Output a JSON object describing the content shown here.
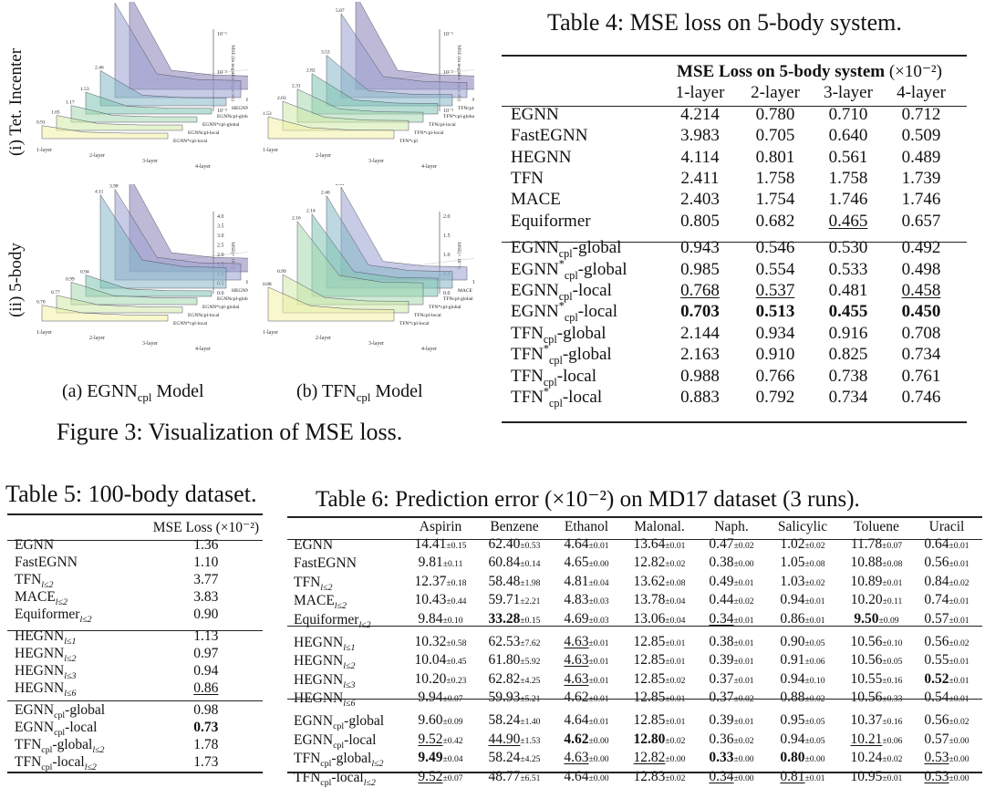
{
  "figure3": {
    "caption": "Figure 3: Visualization of MSE loss.",
    "row_labels": [
      "(i) Tet. Incenter",
      "(ii) 5-body"
    ],
    "sub_a": {
      "prefix": "(a) EGNN",
      "sub": "cpl",
      "suffix": " Model"
    },
    "sub_b": {
      "prefix": "(b) TFN",
      "sub": "cpl",
      "suffix": " Model"
    },
    "x_ticks": [
      "1-layer",
      "2-layer",
      "3-layer",
      "4-layer"
    ],
    "z_label_log": "MSE (in negative log scale)",
    "z_label_lin": "MSE(× 10⁻²)",
    "z_ticks_log": [
      "10⁻¹",
      "10⁻²",
      "10⁻³"
    ],
    "z_ticks_lin": [
      "4.0",
      "3.5",
      "3.0",
      "2.5",
      "2.0",
      "1.5",
      "1.0",
      "0.5",
      "0.0"
    ],
    "z_ticks_lin_tfn": [
      "2.0",
      "1.5",
      "1.0",
      "0.5",
      "0.0"
    ],
    "egnn_series": [
      "EGNN",
      "FastEGNN",
      "HEGNN",
      "EGNN_cpl-global",
      "EGNN*_cpl-global",
      "EGNN_cpl-local",
      "EGNN*_cpl-local"
    ],
    "tfn_series": [
      "TFN",
      "MACE",
      "TFN_cpl-global",
      "TFN*_cpl-global",
      "TFN_cpl-local",
      "TFN*_cpl-local"
    ],
    "series_colors": [
      "#8a7fb8",
      "#9aa0cf",
      "#86b8c9",
      "#7fc4b2",
      "#a5d8b0",
      "#d2eaa8",
      "#f2f0a6"
    ],
    "panel_tl_values": [
      "6.65",
      "6.61",
      "2.46",
      "1.53",
      "1.17",
      "1.05",
      "0.91"
    ],
    "panel_tr_values": [
      "6.64",
      "5.87",
      "3.53",
      "2.82",
      "2.31",
      "2.03",
      "1.53"
    ],
    "panel_bl_values": [
      "4.21",
      "3.98",
      "4.11",
      "0.94",
      "0.99",
      "0.77",
      "0.70"
    ],
    "panel_br_values": [
      "2.41",
      "2.40",
      "2.14",
      "2.16",
      "0.99",
      "0.88"
    ]
  },
  "table4": {
    "caption": "Table 4: MSE loss on 5-body system.",
    "group_header": "MSE Loss on 5-body system",
    "group_unit": "(×10⁻²)",
    "columns": [
      "1-layer",
      "2-layer",
      "3-layer",
      "4-layer"
    ],
    "rows": [
      {
        "name": "EGNN",
        "v": [
          "4.214",
          "0.780",
          "0.710",
          "0.712"
        ]
      },
      {
        "name": "FastEGNN",
        "v": [
          "3.983",
          "0.705",
          "0.640",
          "0.509"
        ]
      },
      {
        "name": "HEGNN",
        "v": [
          "4.114",
          "0.801",
          "0.561",
          "0.489"
        ]
      },
      {
        "name": "TFN",
        "v": [
          "2.411",
          "1.758",
          "1.758",
          "1.739"
        ]
      },
      {
        "name": "MACE",
        "v": [
          "2.403",
          "1.754",
          "1.746",
          "1.746"
        ]
      },
      {
        "name": "Equiformer",
        "v": [
          "0.805",
          "0.682",
          "0.465",
          "0.657"
        ]
      },
      {
        "name": "EGNN_cpl-global",
        "v": [
          "0.943",
          "0.546",
          "0.530",
          "0.492"
        ]
      },
      {
        "name": "EGNN*_cpl-global",
        "v": [
          "0.985",
          "0.554",
          "0.533",
          "0.498"
        ]
      },
      {
        "name": "EGNN_cpl-local",
        "v": [
          "0.768",
          "0.537",
          "0.481",
          "0.458"
        ]
      },
      {
        "name": "EGNN*_cpl-local",
        "v": [
          "0.703",
          "0.513",
          "0.455",
          "0.450"
        ]
      },
      {
        "name": "TFN_cpl-global",
        "v": [
          "2.144",
          "0.934",
          "0.916",
          "0.708"
        ]
      },
      {
        "name": "TFN*_cpl-global",
        "v": [
          "2.163",
          "0.910",
          "0.825",
          "0.734"
        ]
      },
      {
        "name": "TFN_cpl-local",
        "v": [
          "0.988",
          "0.766",
          "0.738",
          "0.761"
        ]
      },
      {
        "name": "TFN*_cpl-local",
        "v": [
          "0.883",
          "0.792",
          "0.734",
          "0.746"
        ]
      }
    ]
  },
  "table5": {
    "caption": "Table 5: 100-body dataset.",
    "header": "MSE Loss (×10⁻²)",
    "rows": [
      {
        "name": "EGNN",
        "v": "1.36"
      },
      {
        "name": "FastEGNN",
        "v": "1.10"
      },
      {
        "name": "TFN_l≤2",
        "v": "3.77"
      },
      {
        "name": "MACE_l≤2",
        "v": "3.83"
      },
      {
        "name": "Equiformer_l≤2",
        "v": "0.90"
      },
      {
        "name": "HEGNN_l≤1",
        "v": "1.13"
      },
      {
        "name": "HEGNN_l≤2",
        "v": "0.97"
      },
      {
        "name": "HEGNN_l≤3",
        "v": "0.94"
      },
      {
        "name": "HEGNN_l≤6",
        "v": "0.86"
      },
      {
        "name": "EGNN_cpl-global",
        "v": "0.98"
      },
      {
        "name": "EGNN_cpl-local",
        "v": "0.73"
      },
      {
        "name": "TFN_cpl-global_l≤2",
        "v": "1.78"
      },
      {
        "name": "TFN_cpl-local_l≤2",
        "v": "1.73"
      }
    ]
  },
  "table6": {
    "caption": "Table 6: Prediction error (×10⁻²) on MD17 dataset (3 runs).",
    "columns": [
      "Aspirin",
      "Benzene",
      "Ethanol",
      "Malonal.",
      "Naph.",
      "Salicylic",
      "Toluene",
      "Uracil"
    ],
    "rows": [
      {
        "name": "EGNN",
        "v": [
          "14.41±0.15",
          "62.40±0.53",
          "4.64±0.01",
          "13.64±0.01",
          "0.47±0.02",
          "1.02±0.02",
          "11.78±0.07",
          "0.64±0.01"
        ]
      },
      {
        "name": "FastEGNN",
        "v": [
          "9.81±0.11",
          "60.84±0.14",
          "4.65±0.00",
          "12.82±0.02",
          "0.38±0.00",
          "1.05±0.08",
          "10.88±0.08",
          "0.56±0.01"
        ]
      },
      {
        "name": "TFN_l≤2",
        "v": [
          "12.37±0.18",
          "58.48±1.98",
          "4.81±0.04",
          "13.62±0.08",
          "0.49±0.01",
          "1.03±0.02",
          "10.89±0.01",
          "0.84±0.02"
        ]
      },
      {
        "name": "MACE_l≤2",
        "v": [
          "10.43±0.44",
          "59.71±2.21",
          "4.83±0.03",
          "13.78±0.04",
          "0.44±0.02",
          "0.94±0.01",
          "10.20±0.11",
          "0.74±0.01"
        ]
      },
      {
        "name": "Equiformer_l≤2",
        "v": [
          "9.84±0.10",
          "33.28±0.15",
          "4.69±0.03",
          "13.06±0.04",
          "0.34±0.01",
          "0.86±0.01",
          "9.50±0.09",
          "0.57±0.01"
        ]
      },
      {
        "name": "HEGNN_l≤1",
        "v": [
          "10.32±0.58",
          "62.53±7.62",
          "4.63±0.01",
          "12.85±0.01",
          "0.38±0.01",
          "0.90±0.05",
          "10.56±0.10",
          "0.56±0.02"
        ]
      },
      {
        "name": "HEGNN_l≤2",
        "v": [
          "10.04±0.45",
          "61.80±5.92",
          "4.63±0.01",
          "12.85±0.01",
          "0.39±0.01",
          "0.91±0.06",
          "10.56±0.05",
          "0.55±0.01"
        ]
      },
      {
        "name": "HEGNN_l≤3",
        "v": [
          "10.20±0.23",
          "62.82±4.25",
          "4.63±0.01",
          "12.85±0.02",
          "0.37±0.01",
          "0.94±0.10",
          "10.55±0.16",
          "0.52±0.01"
        ]
      },
      {
        "name": "HEGNN_l≤6",
        "v": [
          "9.94±0.07",
          "59.93±5.21",
          "4.62±0.01",
          "12.85±0.01",
          "0.37±0.02",
          "0.88±0.02",
          "10.56±0.33",
          "0.54±0.01"
        ]
      },
      {
        "name": "EGNN_cpl-global",
        "v": [
          "9.60±0.09",
          "58.24±1.40",
          "4.64±0.01",
          "12.85±0.01",
          "0.39±0.01",
          "0.95±0.05",
          "10.37±0.16",
          "0.56±0.02"
        ]
      },
      {
        "name": "EGNN_cpl-local",
        "v": [
          "9.52±0.42",
          "44.90±1.53",
          "4.62±0.00",
          "12.80±0.02",
          "0.36±0.02",
          "0.94±0.05",
          "10.21±0.06",
          "0.57±0.00"
        ]
      },
      {
        "name": "TFN_cpl-global_l≤2",
        "v": [
          "9.49±0.04",
          "58.24±4.25",
          "4.63±0.00",
          "12.82±0.00",
          "0.33±0.00",
          "0.80±0.00",
          "10.24±0.02",
          "0.53±0.00"
        ]
      },
      {
        "name": "TFN_cpl-local_l≤2",
        "v": [
          "9.52±0.07",
          "48.77±6.51",
          "4.64±0.00",
          "12.83±0.02",
          "0.34±0.00",
          "0.81±0.01",
          "10.95±0.01",
          "0.53±0.00"
        ]
      }
    ]
  }
}
